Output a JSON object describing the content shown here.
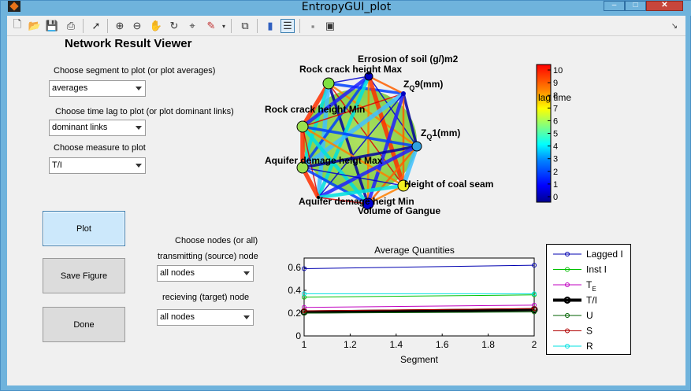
{
  "window": {
    "title": "EntropyGUI_plot"
  },
  "toolbar": {
    "icons": [
      "new-file-icon",
      "open-folder-icon",
      "save-icon",
      "print-icon",
      "pointer-icon",
      "zoom-in-icon",
      "zoom-out-icon",
      "pan-hand-icon",
      "rotate-icon",
      "data-cursor-icon",
      "brush-icon",
      "brush-dropdown-icon",
      "link-plot-icon",
      "colorbar-icon",
      "legend-icon",
      "hide-plot-tools-icon",
      "show-plot-tools-icon"
    ]
  },
  "viewer": {
    "heading": "Network Result Viewer",
    "segment_label": "Choose segment to plot (or plot averages)",
    "segment_value": "averages",
    "lag_label": "Choose time lag to plot (or plot dominant links)",
    "lag_value": "dominant links",
    "measure_label": "Choose measure to plot",
    "measure_value": "T/I",
    "plot_button": "Plot",
    "save_button": "Save Figure",
    "done_button": "Done",
    "nodes_label": "Choose nodes (or all)",
    "source_label": "transmitting (source) node",
    "source_value": "all nodes",
    "target_label": "recieving (target) node",
    "target_value": "all nodes"
  },
  "network": {
    "nodes": [
      "Errosion of soil (g/)m2",
      "Rock crack height Max",
      "Rock crack height Min",
      "Aquifer demage heigt Max",
      "Aquifer demage heigt Min",
      "Volume of Gangue",
      "Height of coal seam"
    ],
    "node_zq9": "Z",
    "node_zq9_sub": "Q",
    "node_zq9_rest": "9(mm)",
    "node_zq1": "Z",
    "node_zq1_sub": "Q",
    "node_zq1_rest": "1(mm)",
    "colorbar_label": "lag time",
    "colorbar_ticks": [
      "10",
      "9",
      "8",
      "7",
      "6",
      "5",
      "4",
      "3",
      "2",
      "1",
      "0"
    ]
  },
  "chart_data": {
    "type": "line",
    "title": "Average Quantities",
    "xlabel": "Segment",
    "ylabel": "",
    "x": [
      1,
      2
    ],
    "xlim": [
      1,
      2
    ],
    "ylim": [
      0,
      0.6
    ],
    "xticks": [
      "1",
      "1.2",
      "1.4",
      "1.6",
      "1.8",
      "2"
    ],
    "yticks": [
      "0",
      "0.2",
      "0.4",
      "0.6"
    ],
    "legend_position": "right",
    "series": [
      {
        "name": "Lagged I",
        "values": [
          0.59,
          0.62
        ],
        "color": "#0000b0"
      },
      {
        "name": "Inst I",
        "values": [
          0.34,
          0.36
        ],
        "color": "#00c000"
      },
      {
        "name": "T",
        "name_sub": "E",
        "values": [
          0.25,
          0.27
        ],
        "color": "#c000c0"
      },
      {
        "name": "T/I",
        "values": [
          0.21,
          0.23
        ],
        "color": "#000000"
      },
      {
        "name": "U",
        "values": [
          0.2,
          0.21
        ],
        "color": "#006000"
      },
      {
        "name": "S",
        "values": [
          0.22,
          0.24
        ],
        "color": "#b00000"
      },
      {
        "name": "R",
        "values": [
          0.37,
          0.37
        ],
        "color": "#00e0e0"
      }
    ]
  }
}
